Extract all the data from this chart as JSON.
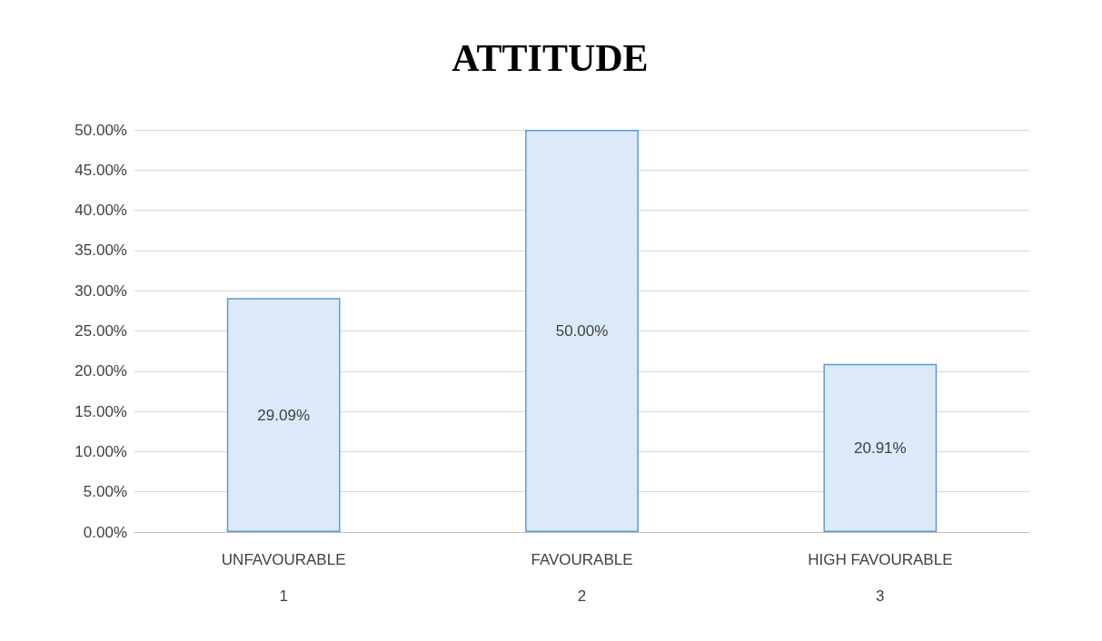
{
  "chart_data": {
    "type": "bar",
    "title": "ATTITUDE",
    "categories": [
      "UNFAVOURABLE\n\n1",
      "FAVOURABLE\n\n2",
      "HIGH FAVOURABLE\n\n3"
    ],
    "values": [
      29.09,
      50,
      20.91
    ],
    "value_labels": [
      "29.09%",
      "50.00%",
      "20.91%"
    ],
    "color": "#dce9f8",
    "ylim": [
      0,
      50
    ],
    "yticks": [
      {
        "value": 0,
        "label": "0.00%"
      },
      {
        "value": 5,
        "label": "5.00%"
      },
      {
        "value": 10,
        "label": "10.00%"
      },
      {
        "value": 15,
        "label": "15.00%"
      },
      {
        "value": 20,
        "label": "20.00%"
      },
      {
        "value": 25,
        "label": "25.00%"
      },
      {
        "value": 30,
        "label": "30.00%"
      },
      {
        "value": 35,
        "label": "35.00%"
      },
      {
        "value": 40,
        "label": "40.00%"
      },
      {
        "value": 45,
        "label": "45.00%"
      },
      {
        "value": 50,
        "label": "50.00%"
      }
    ],
    "grid": "y"
  }
}
